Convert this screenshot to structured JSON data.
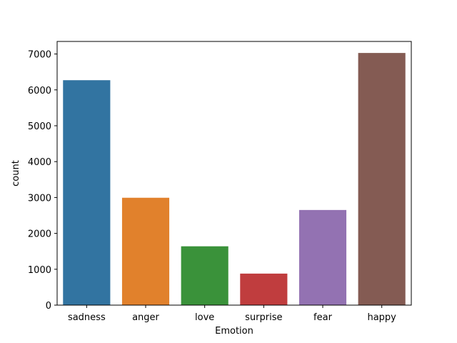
{
  "chart_data": {
    "type": "bar",
    "title": "",
    "xlabel": "Emotion",
    "ylabel": "count",
    "categories": [
      "sadness",
      "anger",
      "love",
      "surprise",
      "fear",
      "happy"
    ],
    "values": [
      6270,
      2993,
      1640,
      879,
      2652,
      7029
    ],
    "colors": [
      "#3274a1",
      "#e1812c",
      "#3a923a",
      "#c03d3e",
      "#9372b2",
      "#845b53"
    ],
    "ylim": [
      0,
      7350
    ],
    "yticks": [
      0,
      1000,
      2000,
      3000,
      4000,
      5000,
      6000,
      7000
    ],
    "grid": false,
    "legend": "none"
  }
}
